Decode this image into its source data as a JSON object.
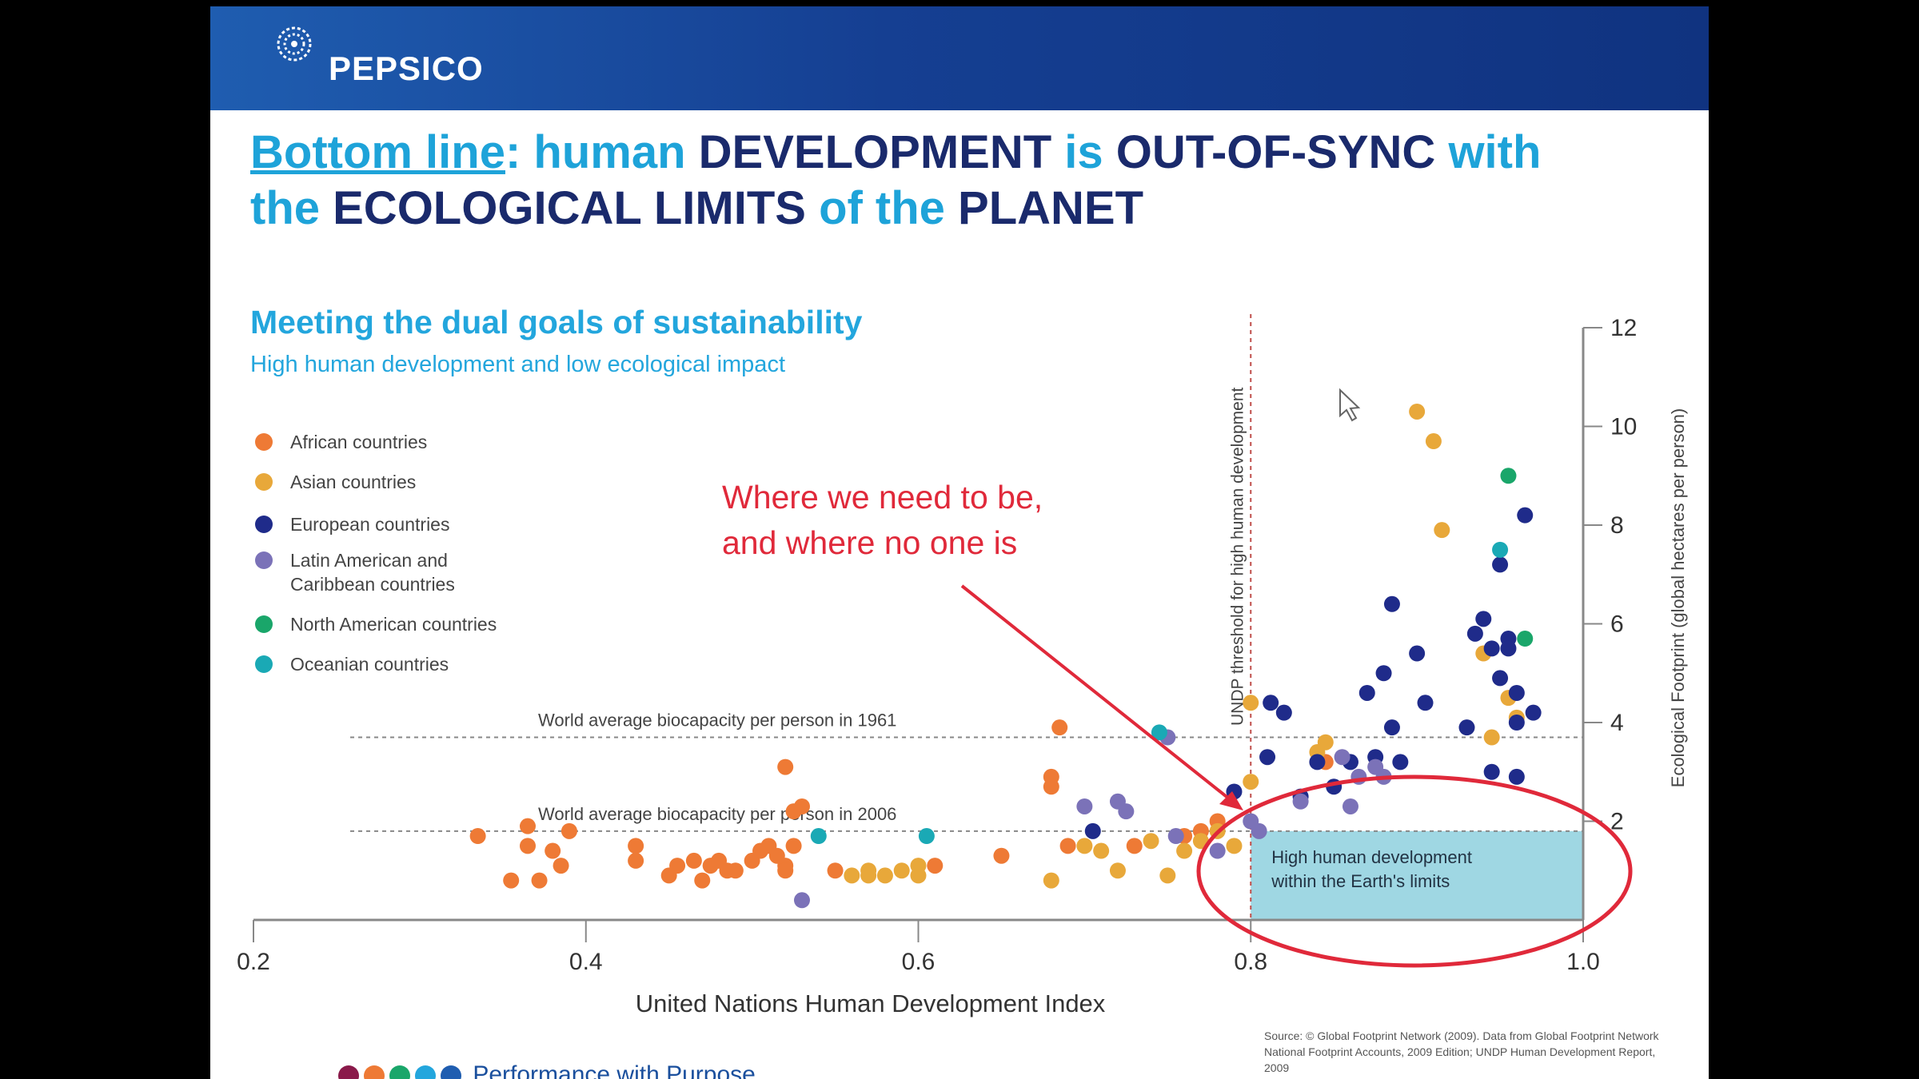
{
  "header": {
    "brand": "PEPSICO",
    "logo_icon": "pepsico-globe-icon"
  },
  "title": {
    "parts": [
      {
        "text": "Bottom line",
        "style": "light-underline"
      },
      {
        "text": ": ",
        "style": "light"
      },
      {
        "text": "human ",
        "style": "light"
      },
      {
        "text": "DEVELOPMENT ",
        "style": "dark"
      },
      {
        "text": "is ",
        "style": "light"
      },
      {
        "text": "OUT-OF-SYNC ",
        "style": "dark"
      },
      {
        "text": "with ",
        "style": "light"
      },
      {
        "text": "the ",
        "style": "light"
      },
      {
        "text": "ECOLOGICAL LIMITS ",
        "style": "dark"
      },
      {
        "text": "of the ",
        "style": "light"
      },
      {
        "text": "PLANET",
        "style": "dark"
      }
    ]
  },
  "callout": {
    "text": "Where we need to be, and where no one is",
    "color": "#e0293a"
  },
  "source": "Source: © Global Footprint Network (2009). Data from Global Footprint Network National Footprint Accounts, 2009 Edition; UNDP Human Development Report, 2009",
  "footer": {
    "text": "Performance with Purpose"
  },
  "colors": {
    "african": "#ee7a35",
    "asian": "#e8a83a",
    "european": "#1f2b8a",
    "latin": "#7b72b8",
    "north_american": "#1aa66a",
    "oceanian": "#1aa9b5",
    "target_zone": "#9fd7e3",
    "threshold": "#c0504d",
    "callout": "#e0293a"
  },
  "chart_data": {
    "type": "scatter",
    "title": "Meeting the dual goals of sustainability",
    "subtitle": "High human development and low ecological impact",
    "xlabel": "United Nations Human Development Index",
    "ylabel": "Ecological Footprint (global hectares per person)",
    "xlim": [
      0.2,
      1.0
    ],
    "ylim": [
      0,
      12
    ],
    "xticks": [
      "0.2",
      "0.4",
      "0.6",
      "0.8",
      "1.0"
    ],
    "yticks": [
      "2",
      "4",
      "6",
      "8",
      "10",
      "12"
    ],
    "y_axis_side": "right",
    "legend_placement": "left",
    "reference_lines": [
      {
        "orientation": "horizontal",
        "value": 3.7,
        "label": "World average biocapacity per person in 1961"
      },
      {
        "orientation": "horizontal",
        "value": 1.8,
        "label": "World average biocapacity per person in 2006"
      },
      {
        "orientation": "vertical",
        "value": 0.8,
        "label": "UNDP threshold for high human development"
      }
    ],
    "target_zone": {
      "x": [
        0.8,
        1.0
      ],
      "y": [
        0,
        1.8
      ],
      "label": "High human development within the Earth's limits"
    },
    "series": [
      {
        "name": "African countries",
        "key": "african",
        "points": [
          [
            0.335,
            1.7
          ],
          [
            0.355,
            0.8
          ],
          [
            0.365,
            1.9
          ],
          [
            0.365,
            1.5
          ],
          [
            0.372,
            0.8
          ],
          [
            0.38,
            1.4
          ],
          [
            0.385,
            1.1
          ],
          [
            0.39,
            1.8
          ],
          [
            0.43,
            1.5
          ],
          [
            0.43,
            1.2
          ],
          [
            0.45,
            0.9
          ],
          [
            0.455,
            1.1
          ],
          [
            0.465,
            1.2
          ],
          [
            0.47,
            0.8
          ],
          [
            0.475,
            1.1
          ],
          [
            0.48,
            1.2
          ],
          [
            0.485,
            1.0
          ],
          [
            0.49,
            1.0
          ],
          [
            0.5,
            1.2
          ],
          [
            0.505,
            1.4
          ],
          [
            0.51,
            1.5
          ],
          [
            0.515,
            1.3
          ],
          [
            0.52,
            1.1
          ],
          [
            0.52,
            1.0
          ],
          [
            0.52,
            3.1
          ],
          [
            0.525,
            2.2
          ],
          [
            0.525,
            1.5
          ],
          [
            0.53,
            2.3
          ],
          [
            0.55,
            1.0
          ],
          [
            0.61,
            1.1
          ],
          [
            0.65,
            1.3
          ],
          [
            0.68,
            2.9
          ],
          [
            0.68,
            2.7
          ],
          [
            0.685,
            3.9
          ],
          [
            0.69,
            1.5
          ],
          [
            0.73,
            1.5
          ],
          [
            0.76,
            1.7
          ],
          [
            0.77,
            1.8
          ],
          [
            0.78,
            2.0
          ],
          [
            0.845,
            3.2
          ]
        ]
      },
      {
        "name": "Asian countries",
        "key": "asian",
        "points": [
          [
            0.56,
            0.9
          ],
          [
            0.57,
            0.9
          ],
          [
            0.57,
            1.0
          ],
          [
            0.58,
            0.9
          ],
          [
            0.59,
            1.0
          ],
          [
            0.6,
            0.9
          ],
          [
            0.6,
            1.1
          ],
          [
            0.68,
            0.8
          ],
          [
            0.7,
            1.5
          ],
          [
            0.71,
            1.4
          ],
          [
            0.72,
            1.0
          ],
          [
            0.74,
            1.6
          ],
          [
            0.75,
            0.9
          ],
          [
            0.76,
            1.4
          ],
          [
            0.77,
            1.6
          ],
          [
            0.78,
            1.8
          ],
          [
            0.79,
            1.5
          ],
          [
            0.8,
            4.4
          ],
          [
            0.8,
            2.8
          ],
          [
            0.84,
            3.4
          ],
          [
            0.845,
            3.6
          ],
          [
            0.9,
            10.3
          ],
          [
            0.91,
            9.7
          ],
          [
            0.915,
            7.9
          ],
          [
            0.94,
            5.4
          ],
          [
            0.945,
            3.7
          ],
          [
            0.955,
            4.5
          ],
          [
            0.96,
            4.1
          ]
        ]
      },
      {
        "name": "European countries",
        "key": "european",
        "points": [
          [
            0.705,
            1.8
          ],
          [
            0.79,
            2.6
          ],
          [
            0.81,
            3.3
          ],
          [
            0.812,
            4.4
          ],
          [
            0.82,
            4.2
          ],
          [
            0.83,
            2.5
          ],
          [
            0.84,
            3.2
          ],
          [
            0.85,
            2.7
          ],
          [
            0.86,
            3.2
          ],
          [
            0.87,
            4.6
          ],
          [
            0.875,
            3.3
          ],
          [
            0.88,
            5.0
          ],
          [
            0.885,
            3.9
          ],
          [
            0.885,
            6.4
          ],
          [
            0.89,
            3.2
          ],
          [
            0.9,
            5.4
          ],
          [
            0.905,
            4.4
          ],
          [
            0.93,
            3.9
          ],
          [
            0.935,
            5.8
          ],
          [
            0.94,
            6.1
          ],
          [
            0.945,
            5.5
          ],
          [
            0.945,
            3.0
          ],
          [
            0.95,
            7.2
          ],
          [
            0.95,
            4.9
          ],
          [
            0.955,
            5.7
          ],
          [
            0.955,
            5.5
          ],
          [
            0.96,
            4.6
          ],
          [
            0.96,
            4.0
          ],
          [
            0.965,
            8.2
          ],
          [
            0.96,
            2.9
          ],
          [
            0.97,
            4.2
          ]
        ]
      },
      {
        "name": "Latin American and Caribbean countries",
        "key": "latin",
        "points": [
          [
            0.53,
            0.4
          ],
          [
            0.7,
            2.3
          ],
          [
            0.72,
            2.4
          ],
          [
            0.725,
            2.2
          ],
          [
            0.75,
            3.7
          ],
          [
            0.755,
            1.7
          ],
          [
            0.78,
            1.4
          ],
          [
            0.8,
            2.0
          ],
          [
            0.805,
            1.8
          ],
          [
            0.83,
            2.4
          ],
          [
            0.855,
            3.3
          ],
          [
            0.86,
            2.3
          ],
          [
            0.865,
            2.9
          ],
          [
            0.875,
            3.1
          ],
          [
            0.88,
            2.9
          ]
        ]
      },
      {
        "name": "North American countries",
        "key": "north_american",
        "points": [
          [
            0.955,
            9.0
          ],
          [
            0.965,
            5.7
          ]
        ]
      },
      {
        "name": "Oceanian countries",
        "key": "oceanian",
        "points": [
          [
            0.54,
            1.7
          ],
          [
            0.605,
            1.7
          ],
          [
            0.745,
            3.8
          ],
          [
            0.95,
            7.5
          ]
        ]
      }
    ]
  }
}
